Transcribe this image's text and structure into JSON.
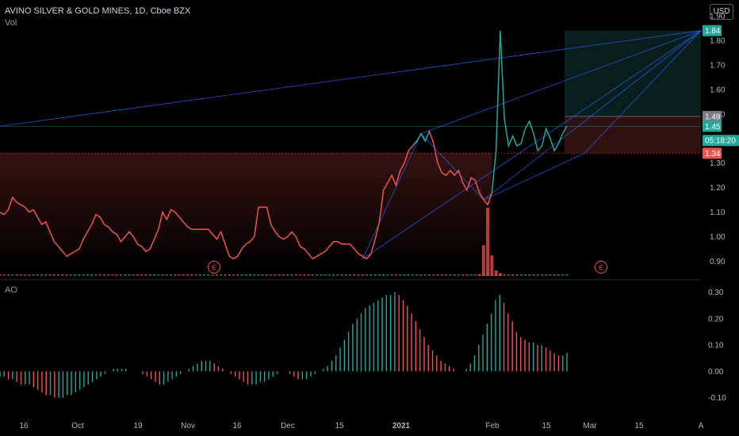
{
  "header": {
    "symbol": "AVINO SILVER & GOLD MINES, 1D, Cboe BZX",
    "volume_label": "Vol",
    "ao_label": "AO",
    "currency_button": "USD"
  },
  "colors": {
    "up": "#26a69a",
    "down": "#ef5350",
    "drawing": "#2962ff",
    "price_line": "#ef5350",
    "long_target": "#26a69a",
    "long_stop": "#ef5350"
  },
  "chart_data": [
    {
      "type": "line",
      "panel": "price",
      "series": [
        {
          "values": [
            1.1,
            1.09,
            1.11,
            1.16,
            1.14,
            1.13,
            1.12,
            1.1,
            1.11,
            1.08,
            1.05,
            1.06,
            1.02,
            0.98,
            0.96,
            0.94,
            0.92,
            0.93,
            0.94,
            0.95,
            0.99,
            1.02,
            1.05,
            1.09,
            1.08,
            1.05,
            1.04,
            1.02,
            1.01,
            0.98,
            1.0,
            1.02,
            1.0,
            0.97,
            0.96,
            0.94,
            0.95,
            0.99,
            1.03,
            1.1,
            1.07,
            1.11,
            1.1,
            1.08,
            1.06,
            1.04,
            1.03,
            1.03,
            1.03,
            1.03,
            1.03,
            1.01,
            0.99,
            1.02,
            0.97,
            0.92,
            0.91,
            0.92,
            0.95,
            0.97,
            0.98,
            1.0,
            1.12,
            1.12,
            1.12,
            1.05,
            1.02,
            1.0,
            0.99,
            1.0,
            1.02,
            1.0,
            0.96,
            0.95,
            0.93,
            0.91,
            0.92,
            0.93,
            0.94,
            0.96,
            0.98,
            0.98,
            0.97,
            0.97,
            0.97,
            0.95,
            0.93,
            0.92,
            0.91,
            0.93,
            0.99,
            1.06,
            1.19,
            1.22,
            1.25,
            1.21,
            1.27,
            1.3,
            1.35,
            1.37,
            1.39,
            1.42,
            1.39,
            1.43,
            1.38,
            1.3,
            1.26,
            1.25,
            1.27,
            1.25,
            1.27,
            1.22,
            1.19,
            1.24,
            1.23,
            1.18,
            1.15,
            1.13,
            1.18,
            1.35,
            1.84,
            1.48,
            1.37,
            1.41,
            1.37,
            1.38,
            1.44,
            1.47,
            1.42,
            1.35,
            1.37,
            1.44,
            1.4,
            1.35,
            1.38,
            1.42,
            1.45
          ]
        }
      ],
      "ylim": [
        0.85,
        1.9
      ],
      "y_ticks": [
        "0.90",
        "1.00",
        "1.10",
        "1.20",
        "1.30",
        "1.40",
        "1.50",
        "1.60",
        "1.70",
        "1.80",
        "1.90"
      ],
      "last_price": 1.34,
      "price_labels": [
        {
          "price": 1.84,
          "text": "1.84",
          "color": "#26a69a"
        },
        {
          "price": 1.49,
          "text": "1.49",
          "color": "#787b86"
        },
        {
          "price": 1.45,
          "text": "1.45",
          "color": "#26a69a"
        },
        {
          "price": 1.392,
          "text": "05:18:20",
          "color": "#26a69a"
        },
        {
          "price": 1.34,
          "text": "1.34",
          "color": "#ef5350"
        }
      ],
      "long_position": {
        "entry": 1.49,
        "target": 1.84,
        "stop": 1.34
      },
      "earnings_markers": [
        "E",
        "E"
      ]
    },
    {
      "type": "bar",
      "panel": "volume",
      "spike_values": [
        0.02,
        0.45,
        1.0,
        0.3,
        0.08,
        0.04
      ]
    },
    {
      "type": "bar",
      "panel": "awesome-oscillator",
      "values": [
        -0.02,
        -0.02,
        -0.03,
        -0.03,
        -0.04,
        -0.05,
        -0.05,
        -0.05,
        -0.06,
        -0.07,
        -0.08,
        -0.09,
        -0.09,
        -0.1,
        -0.1,
        -0.1,
        -0.09,
        -0.09,
        -0.08,
        -0.07,
        -0.06,
        -0.05,
        -0.04,
        -0.03,
        -0.02,
        -0.01,
        0.0,
        0.01,
        0.01,
        0.01,
        0.01,
        0.0,
        0.0,
        0.0,
        -0.01,
        -0.02,
        -0.03,
        -0.04,
        -0.05,
        -0.05,
        -0.04,
        -0.03,
        -0.02,
        -0.01,
        0.0,
        0.01,
        0.02,
        0.03,
        0.04,
        0.04,
        0.04,
        0.03,
        0.02,
        0.01,
        0.0,
        -0.01,
        -0.02,
        -0.03,
        -0.04,
        -0.05,
        -0.05,
        -0.05,
        -0.04,
        -0.04,
        -0.03,
        -0.02,
        -0.01,
        0.0,
        0.0,
        -0.01,
        -0.02,
        -0.03,
        -0.03,
        -0.03,
        -0.02,
        -0.01,
        0.0,
        0.01,
        0.02,
        0.04,
        0.06,
        0.09,
        0.12,
        0.15,
        0.18,
        0.2,
        0.22,
        0.24,
        0.25,
        0.26,
        0.27,
        0.28,
        0.29,
        0.29,
        0.3,
        0.29,
        0.27,
        0.25,
        0.22,
        0.19,
        0.16,
        0.13,
        0.1,
        0.08,
        0.06,
        0.04,
        0.03,
        0.02,
        0.01,
        0.0,
        0.0,
        0.01,
        0.03,
        0.06,
        0.1,
        0.14,
        0.18,
        0.22,
        0.27,
        0.29,
        0.26,
        0.22,
        0.19,
        0.15,
        0.13,
        0.12,
        0.11,
        0.11,
        0.1,
        0.1,
        0.09,
        0.08,
        0.07,
        0.06,
        0.06,
        0.07
      ],
      "ylim": [
        -0.14,
        0.32
      ],
      "y_ticks": [
        "-0.10",
        "0.00",
        "0.10",
        "0.20",
        "0.30"
      ]
    }
  ],
  "x_axis": {
    "labels": [
      "16",
      "Oct",
      "19",
      "Nov",
      "16",
      "Dec",
      "15",
      "2021",
      "Feb",
      "15",
      "Mar",
      "15",
      "A"
    ]
  }
}
